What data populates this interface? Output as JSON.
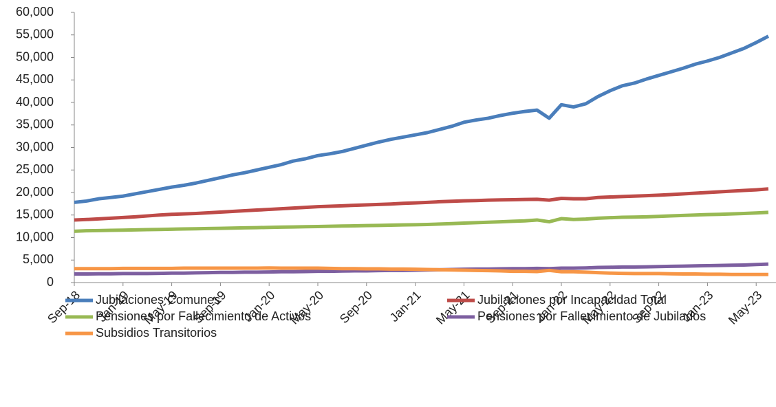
{
  "chart_data": {
    "type": "line",
    "categories": [
      "Sep-18",
      null,
      null,
      null,
      "Jan-19",
      null,
      null,
      null,
      "May-19",
      null,
      null,
      null,
      "Sep-19",
      null,
      null,
      null,
      "Jan-20",
      null,
      null,
      null,
      "May-20",
      null,
      null,
      null,
      "Sep-20",
      null,
      null,
      null,
      "Jan-21",
      null,
      null,
      null,
      "May-21",
      null,
      null,
      null,
      "Sep-21",
      null,
      null,
      null,
      "Jan-22",
      null,
      null,
      null,
      "May-22",
      null,
      null,
      null,
      "Sep-22",
      null,
      null,
      null,
      "Jan-23",
      null,
      null,
      null,
      "May-23",
      null
    ],
    "series": [
      {
        "name": "Jubilaciones Comunes",
        "color": "#4a7ebb",
        "values": [
          17800,
          18100,
          18600,
          18900,
          19200,
          19700,
          20200,
          20700,
          21200,
          21600,
          22100,
          22700,
          23300,
          23900,
          24400,
          25000,
          25600,
          26200,
          27000,
          27500,
          28200,
          28600,
          29100,
          29800,
          30500,
          31200,
          31800,
          32300,
          32800,
          33300,
          34000,
          34700,
          35600,
          36100,
          36500,
          37100,
          37600,
          38000,
          38300,
          36500,
          39500,
          39000,
          39700,
          41300,
          42600,
          43700,
          44300,
          45200,
          46000,
          46800,
          47600,
          48500,
          49200,
          50000,
          51000,
          52000,
          53300,
          54700
        ]
      },
      {
        "name": "Jubilaciones por Incapacidad Total",
        "color": "#be4b48",
        "values": [
          13900,
          14000,
          14150,
          14300,
          14450,
          14600,
          14800,
          15000,
          15150,
          15250,
          15350,
          15500,
          15650,
          15800,
          15950,
          16100,
          16250,
          16400,
          16550,
          16700,
          16850,
          16950,
          17050,
          17150,
          17250,
          17350,
          17450,
          17600,
          17700,
          17800,
          17950,
          18050,
          18150,
          18200,
          18300,
          18350,
          18400,
          18450,
          18500,
          18300,
          18700,
          18600,
          18600,
          18900,
          19000,
          19100,
          19200,
          19300,
          19400,
          19550,
          19700,
          19850,
          20000,
          20150,
          20300,
          20450,
          20600,
          20800
        ]
      },
      {
        "name": "Pensiones por Fallecimiento de Activos",
        "color": "#98b954",
        "values": [
          11400,
          11500,
          11550,
          11600,
          11650,
          11700,
          11750,
          11800,
          11850,
          11900,
          11950,
          12000,
          12050,
          12100,
          12150,
          12200,
          12250,
          12300,
          12350,
          12400,
          12450,
          12500,
          12550,
          12600,
          12650,
          12700,
          12750,
          12800,
          12850,
          12900,
          13000,
          13100,
          13200,
          13300,
          13400,
          13500,
          13600,
          13700,
          13900,
          13500,
          14200,
          14000,
          14100,
          14300,
          14400,
          14500,
          14550,
          14600,
          14700,
          14800,
          14900,
          15000,
          15100,
          15150,
          15250,
          15350,
          15450,
          15600
        ]
      },
      {
        "name": "Pensiones por Fallecimiento de Jubilados",
        "color": "#7d5fa0",
        "values": [
          1900,
          1900,
          1950,
          1950,
          2000,
          2000,
          2000,
          2050,
          2100,
          2100,
          2150,
          2200,
          2250,
          2250,
          2300,
          2300,
          2350,
          2400,
          2400,
          2450,
          2500,
          2500,
          2550,
          2600,
          2600,
          2650,
          2700,
          2700,
          2750,
          2800,
          2850,
          2900,
          2950,
          3000,
          3000,
          3050,
          3100,
          3100,
          3150,
          3100,
          3200,
          3200,
          3250,
          3350,
          3400,
          3450,
          3450,
          3500,
          3550,
          3600,
          3650,
          3700,
          3750,
          3800,
          3850,
          3900,
          4000,
          4100
        ]
      },
      {
        "name": "Subsidios Transitorios",
        "color": "#f79646",
        "values": [
          3100,
          3100,
          3100,
          3100,
          3150,
          3150,
          3150,
          3150,
          3150,
          3200,
          3200,
          3200,
          3200,
          3200,
          3200,
          3200,
          3250,
          3200,
          3200,
          3200,
          3200,
          3150,
          3100,
          3100,
          3050,
          3050,
          3000,
          3000,
          2950,
          2900,
          2850,
          2800,
          2750,
          2700,
          2650,
          2600,
          2500,
          2500,
          2450,
          2700,
          2400,
          2400,
          2300,
          2200,
          2100,
          2050,
          2000,
          2000,
          2000,
          1950,
          1900,
          1900,
          1850,
          1850,
          1800,
          1800,
          1800,
          1800
        ]
      }
    ],
    "ylim": [
      0,
      60000
    ],
    "yticks": [
      0,
      {
        "value": 5000,
        "label": "5,000"
      },
      {
        "value": 10000,
        "label": "10,000"
      },
      {
        "value": 15000,
        "label": "15,000"
      },
      {
        "value": 20000,
        "label": "20,000"
      },
      {
        "value": 25000,
        "label": "25,000"
      },
      {
        "value": 30000,
        "label": "30,000"
      },
      {
        "value": 35000,
        "label": "35,000"
      },
      {
        "value": 40000,
        "label": "40,000"
      },
      {
        "value": 45000,
        "label": "45,000"
      },
      {
        "value": 50000,
        "label": "50,000"
      },
      {
        "value": 55000,
        "label": "55,000"
      },
      {
        "value": 60000,
        "label": "60,000"
      }
    ],
    "grid": false,
    "legend": "bottom"
  }
}
